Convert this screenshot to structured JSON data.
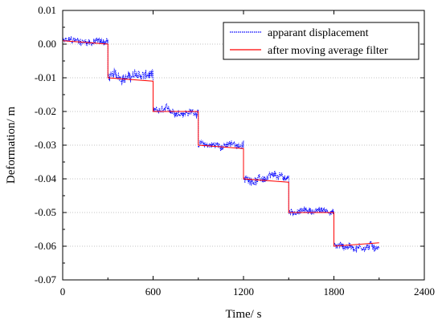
{
  "chart_data": {
    "type": "line",
    "title": "",
    "xlabel": "Time/ s",
    "ylabel": "Deformation/ m",
    "xlim": [
      0,
      2400
    ],
    "ylim": [
      -0.07,
      0.01
    ],
    "x_ticks": [
      0,
      600,
      1200,
      1800,
      2400
    ],
    "x_tick_labels": [
      "0",
      "600",
      "1200",
      "1800",
      "2400"
    ],
    "y_ticks": [
      0.01,
      0.0,
      -0.01,
      -0.02,
      -0.03,
      -0.04,
      -0.05,
      -0.06,
      -0.07
    ],
    "y_tick_labels": [
      "0.01",
      "0.00",
      "-0.01",
      "-0.02",
      "-0.03",
      "-0.04",
      "-0.05",
      "-0.06",
      "-0.07"
    ],
    "grid": "horizontal dotted",
    "legend_position": "top-right",
    "series": [
      {
        "name": "apparant displacement",
        "color": "#0000ff",
        "style": "dotted",
        "segments": [
          {
            "x_start": 0,
            "x_end": 300,
            "mean": 0.0008,
            "noise": 0.0016
          },
          {
            "x_start": 300,
            "x_end": 600,
            "mean": -0.0095,
            "noise": 0.0022
          },
          {
            "x_start": 600,
            "x_end": 900,
            "mean": -0.02,
            "noise": 0.0016
          },
          {
            "x_start": 900,
            "x_end": 1200,
            "mean": -0.03,
            "noise": 0.0016
          },
          {
            "x_start": 1200,
            "x_end": 1500,
            "mean": -0.04,
            "noise": 0.0018
          },
          {
            "x_start": 1500,
            "x_end": 1800,
            "mean": -0.0495,
            "noise": 0.0014
          },
          {
            "x_start": 1800,
            "x_end": 2100,
            "mean": -0.06,
            "noise": 0.0018
          }
        ]
      },
      {
        "name": "after moving average filter",
        "color": "#ff0000",
        "style": "solid",
        "x": [
          0,
          300,
          300,
          600,
          600,
          900,
          900,
          1200,
          1200,
          1500,
          1500,
          1800,
          1800,
          2100
        ],
        "y": [
          0.001,
          0.0,
          -0.01,
          -0.011,
          -0.02,
          -0.02,
          -0.03,
          -0.031,
          -0.04,
          -0.041,
          -0.05,
          -0.05,
          -0.06,
          -0.059
        ]
      }
    ]
  }
}
